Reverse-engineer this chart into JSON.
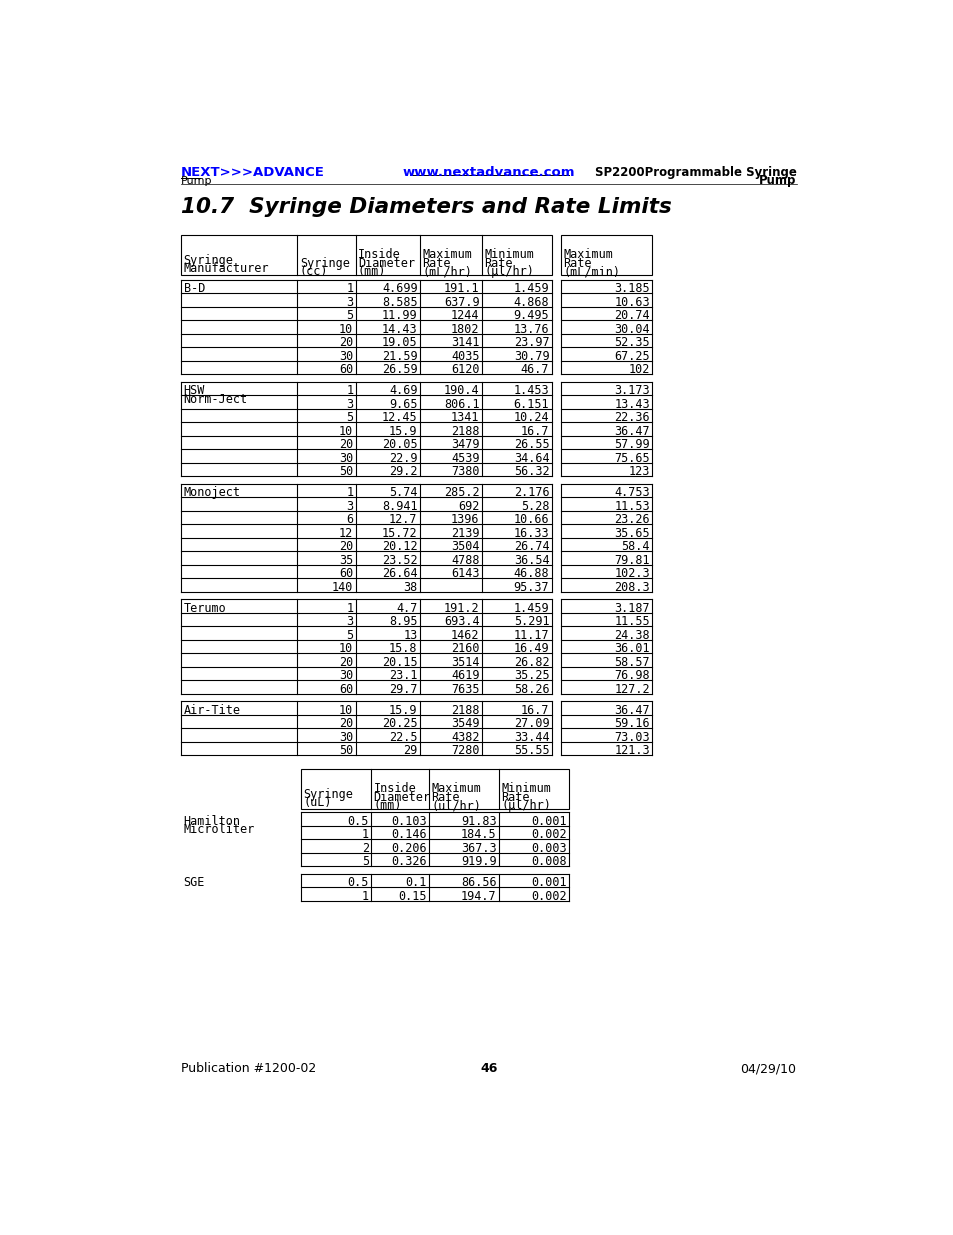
{
  "title": "10.7  Syringe Diameters and Rate Limits",
  "header_left": "NEXT>>>ADVANCE",
  "header_left2": "Pump",
  "header_center": "www.nextadvance.com",
  "header_right1": "SP2200Programmable Syringe",
  "header_right2": "Pump",
  "footer_left": "Publication #1200-02",
  "footer_center": "46",
  "footer_right": "04/29/10",
  "manufacturers": [
    {
      "name": "B-D",
      "rows": [
        [
          "1",
          "4.699",
          "191.1",
          "1.459",
          "3.185"
        ],
        [
          "3",
          "8.585",
          "637.9",
          "4.868",
          "10.63"
        ],
        [
          "5",
          "11.99",
          "1244",
          "9.495",
          "20.74"
        ],
        [
          "10",
          "14.43",
          "1802",
          "13.76",
          "30.04"
        ],
        [
          "20",
          "19.05",
          "3141",
          "23.97",
          "52.35"
        ],
        [
          "30",
          "21.59",
          "4035",
          "30.79",
          "67.25"
        ],
        [
          "60",
          "26.59",
          "6120",
          "46.7",
          "102"
        ]
      ]
    },
    {
      "name": "HSW\nNorm-Ject",
      "rows": [
        [
          "1",
          "4.69",
          "190.4",
          "1.453",
          "3.173"
        ],
        [
          "3",
          "9.65",
          "806.1",
          "6.151",
          "13.43"
        ],
        [
          "5",
          "12.45",
          "1341",
          "10.24",
          "22.36"
        ],
        [
          "10",
          "15.9",
          "2188",
          "16.7",
          "36.47"
        ],
        [
          "20",
          "20.05",
          "3479",
          "26.55",
          "57.99"
        ],
        [
          "30",
          "22.9",
          "4539",
          "34.64",
          "75.65"
        ],
        [
          "50",
          "29.2",
          "7380",
          "56.32",
          "123"
        ]
      ]
    },
    {
      "name": "Monoject",
      "rows": [
        [
          "1",
          "5.74",
          "285.2",
          "2.176",
          "4.753"
        ],
        [
          "3",
          "8.941",
          "692",
          "5.28",
          "11.53"
        ],
        [
          "6",
          "12.7",
          "1396",
          "10.66",
          "23.26"
        ],
        [
          "12",
          "15.72",
          "2139",
          "16.33",
          "35.65"
        ],
        [
          "20",
          "20.12",
          "3504",
          "26.74",
          "58.4"
        ],
        [
          "35",
          "23.52",
          "4788",
          "36.54",
          "79.81"
        ],
        [
          "60",
          "26.64",
          "6143",
          "46.88",
          "102.3"
        ],
        [
          "140",
          "38",
          "",
          "95.37",
          "208.3"
        ]
      ]
    },
    {
      "name": "Terumo",
      "rows": [
        [
          "1",
          "4.7",
          "191.2",
          "1.459",
          "3.187"
        ],
        [
          "3",
          "8.95",
          "693.4",
          "5.291",
          "11.55"
        ],
        [
          "5",
          "13",
          "1462",
          "11.17",
          "24.38"
        ],
        [
          "10",
          "15.8",
          "2160",
          "16.49",
          "36.01"
        ],
        [
          "20",
          "20.15",
          "3514",
          "26.82",
          "58.57"
        ],
        [
          "30",
          "23.1",
          "4619",
          "35.25",
          "76.98"
        ],
        [
          "60",
          "29.7",
          "7635",
          "58.26",
          "127.2"
        ]
      ]
    },
    {
      "name": "Air-Tite",
      "rows": [
        [
          "10",
          "15.9",
          "2188",
          "16.7",
          "36.47"
        ],
        [
          "20",
          "20.25",
          "3549",
          "27.09",
          "59.16"
        ],
        [
          "30",
          "22.5",
          "4382",
          "33.44",
          "73.03"
        ],
        [
          "50",
          "29",
          "7280",
          "55.55",
          "121.3"
        ]
      ]
    }
  ],
  "small_manufacturers": [
    {
      "name": "Hamilton\nMicroliter",
      "rows": [
        [
          "0.5",
          "0.103",
          "91.83",
          "0.001"
        ],
        [
          "1",
          "0.146",
          "184.5",
          "0.002"
        ],
        [
          "2",
          "0.206",
          "367.3",
          "0.003"
        ],
        [
          "5",
          "0.326",
          "919.9",
          "0.008"
        ]
      ]
    },
    {
      "name": "SGE",
      "rows": [
        [
          "0.5",
          "0.1",
          "86.56",
          "0.001"
        ],
        [
          "1",
          "0.15",
          "194.7",
          "0.002"
        ]
      ]
    }
  ]
}
